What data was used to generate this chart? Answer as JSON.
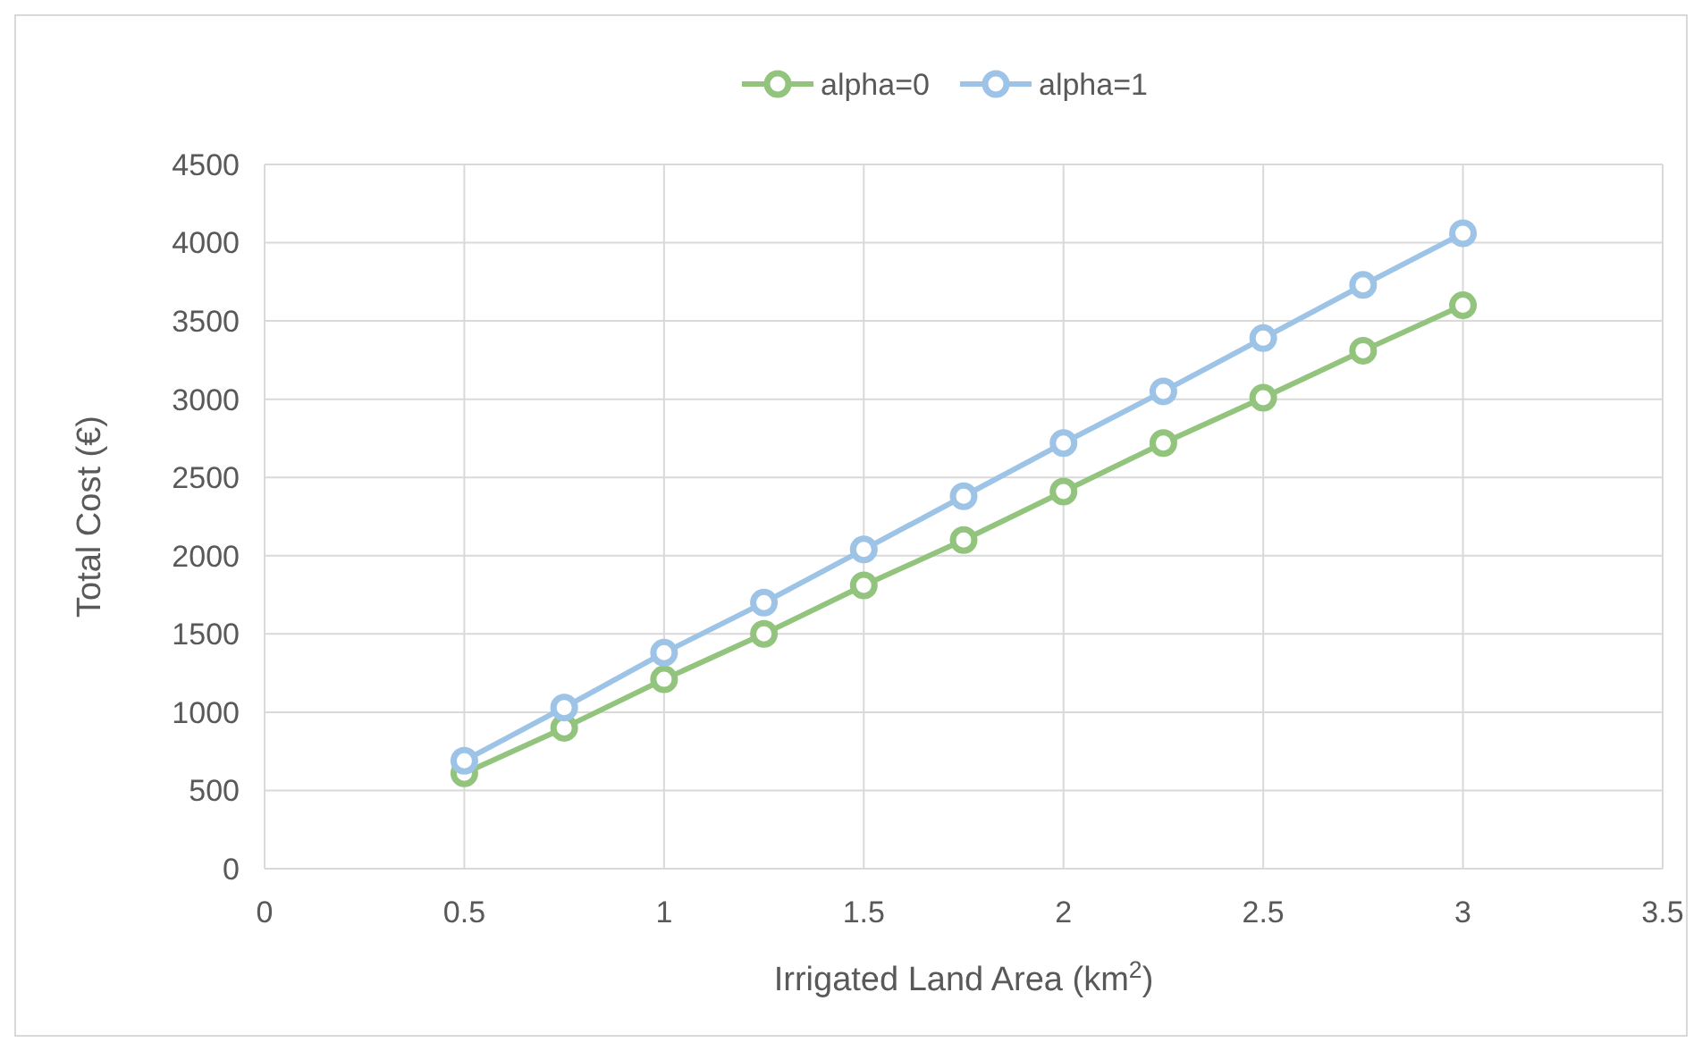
{
  "chart_data": {
    "type": "line",
    "xlabel": "Irrigated Land Area (km$^{2}$)",
    "ylabel": "Total Cost (€)",
    "x": [
      0.5,
      0.75,
      1,
      1.25,
      1.5,
      1.75,
      2,
      2.25,
      2.5,
      2.75,
      3
    ],
    "series": [
      {
        "name": "alpha=0",
        "color": "#93c47d",
        "values": [
          610,
          900,
          1210,
          1500,
          1810,
          2100,
          2410,
          2720,
          3010,
          3310,
          3600
        ]
      },
      {
        "name": "alpha=1",
        "color": "#9dc3e6",
        "values": [
          690,
          1030,
          1380,
          1700,
          2040,
          2380,
          2720,
          3050,
          3390,
          3730,
          4060
        ]
      }
    ],
    "xlim": [
      0,
      3.5
    ],
    "xticks": [
      0,
      0.5,
      1,
      1.5,
      2,
      2.5,
      3,
      3.5
    ],
    "ylim": [
      0,
      4500
    ],
    "yticks": [
      0,
      500,
      1000,
      1500,
      2000,
      2500,
      3000,
      3500,
      4000,
      4500
    ],
    "grid": true,
    "legend": "top",
    "marker": "circle",
    "line_style": "solid"
  }
}
